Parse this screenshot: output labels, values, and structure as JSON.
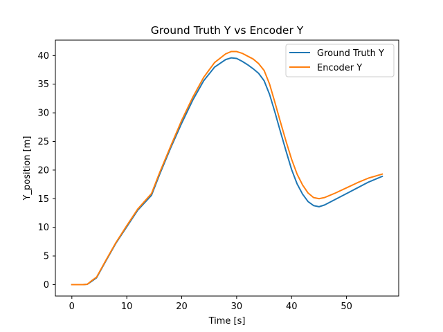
{
  "chart_data": {
    "type": "line",
    "title": "Ground Truth Y vs Encoder Y",
    "xlabel": "Time [s]",
    "ylabel": "Y_position [m]",
    "xlim": [
      -3.0,
      59.5
    ],
    "ylim": [
      -2.0,
      42.7
    ],
    "xticks": [
      0,
      10,
      20,
      30,
      40,
      50
    ],
    "yticks": [
      0,
      5,
      10,
      15,
      20,
      25,
      30,
      35,
      40
    ],
    "grid": false,
    "legend_position": "top-right",
    "series": [
      {
        "name": "Ground Truth Y",
        "color": "#1f77b4",
        "x": [
          0,
          1,
          2,
          2.8,
          3.5,
          4.5,
          6,
          8,
          10,
          12,
          14.5,
          16,
          18,
          20,
          22,
          24,
          26,
          28,
          29,
          30,
          31,
          32,
          33,
          34,
          35,
          36,
          37,
          38,
          39,
          40,
          41,
          42,
          43,
          44,
          45,
          46,
          47,
          48,
          50,
          52,
          54,
          56.5
        ],
        "y": [
          0,
          0,
          0,
          0.05,
          0.5,
          1.2,
          3.8,
          7.2,
          10.1,
          13.0,
          15.6,
          19.3,
          23.9,
          28.2,
          32.2,
          35.6,
          38.0,
          39.3,
          39.6,
          39.5,
          39.0,
          38.4,
          37.7,
          36.9,
          35.6,
          33.2,
          30.0,
          26.6,
          23.3,
          20.1,
          17.6,
          15.8,
          14.5,
          13.8,
          13.6,
          13.9,
          14.4,
          14.9,
          15.9,
          16.9,
          17.9,
          18.9
        ]
      },
      {
        "name": "Encoder Y",
        "color": "#ff7f0e",
        "x": [
          0,
          1,
          2,
          2.8,
          3.5,
          4.5,
          6,
          8,
          10,
          12,
          14.5,
          16,
          18,
          20,
          22,
          24,
          26,
          28,
          29,
          30,
          31,
          32,
          33,
          34,
          35,
          36,
          37,
          38,
          39,
          40,
          41,
          42,
          43,
          44,
          45,
          46,
          47,
          48,
          50,
          52,
          54,
          56.5
        ],
        "y": [
          0,
          0,
          0,
          0.05,
          0.6,
          1.3,
          3.9,
          7.3,
          10.3,
          13.2,
          15.9,
          19.6,
          24.2,
          28.7,
          32.7,
          36.2,
          38.8,
          40.3,
          40.7,
          40.7,
          40.4,
          39.9,
          39.4,
          38.6,
          37.4,
          35.0,
          31.7,
          28.3,
          25.0,
          21.9,
          19.3,
          17.4,
          16.0,
          15.2,
          15.0,
          15.2,
          15.6,
          16.0,
          16.9,
          17.8,
          18.6,
          19.3
        ]
      }
    ]
  }
}
